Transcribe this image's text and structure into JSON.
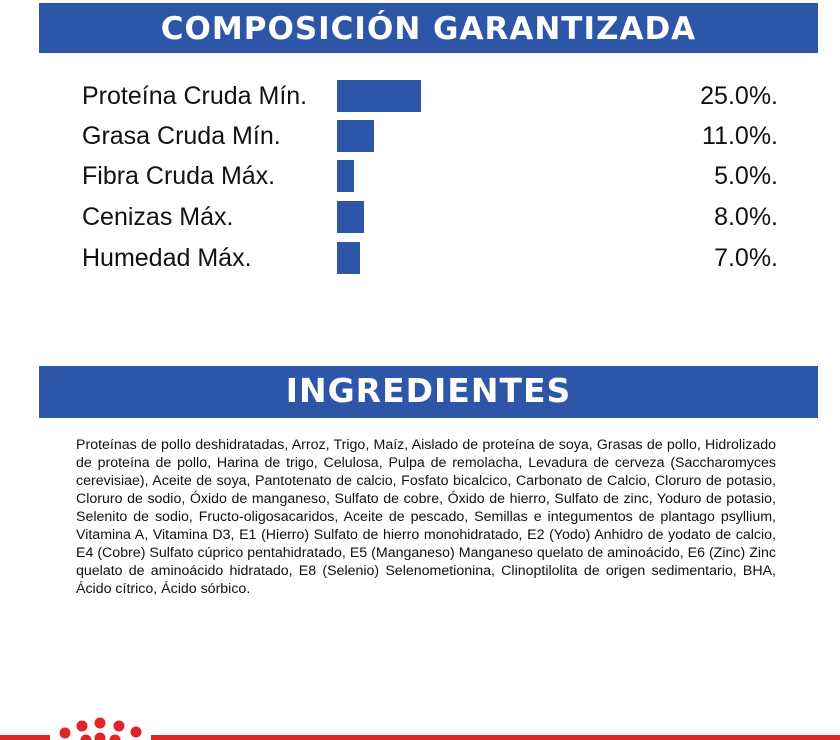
{
  "composition": {
    "title": "COMPOSICIÓN GARANTIZADA",
    "bar_color": "#2d56a8",
    "rows": [
      {
        "label": "Proteína Cruda Mín.",
        "value": "25.0%.",
        "percent": 25.0
      },
      {
        "label": "Grasa Cruda Mín.",
        "value": "11.0%.",
        "percent": 11.0
      },
      {
        "label": "Fibra Cruda Máx.",
        "value": "5.0%.",
        "percent": 5.0
      },
      {
        "label": "Cenizas Máx.",
        "value": "8.0%.",
        "percent": 8.0
      },
      {
        "label": "Humedad Máx.",
        "value": "7.0%.",
        "percent": 7.0
      }
    ]
  },
  "ingredients": {
    "title": "INGREDIENTES",
    "text": "Proteínas de pollo deshidratadas, Arroz, Trigo, Maíz, Aislado de proteína de soya, Grasas de pollo, Hidrolizado de proteína de pollo, Harina de trigo, Celulosa, Pulpa de remolacha, Levadura de cerveza (Saccharomyces cerevisiae), Aceite de soya, Pantotenato de calcio, Fosfato bicalcico, Carbonato de Calcio, Cloruro de potasio, Cloruro de sodio, Óxido de manganeso, Sulfato de cobre, Óxido de hierro, Sulfato de zinc, Yoduro de potasio, Selenito de sodio, Fructo-oligosacaridos, Aceite de pescado, Semillas e integumentos de plantago psyllium, Vitamina A, Vitamina D3, E1 (Hierro) Sulfato de hierro monohidratado, E2 (Yodo) Anhidro de yodato de calcio, E4 (Cobre) Sulfato cúprico pentahidratado, E5 (Manganeso) Manganeso quelato de aminoácido, E6 (Zinc) Zinc quelato de aminoácido hidratado, E8 (Selenio) Selenometionina, Clinoptilolita de origen sedimentario, BHA, Ácido cítrico, Ácido sórbico."
  },
  "footer": {
    "logo_icon": "royal-canin-crown-dots-icon",
    "accent": "#e1232a"
  }
}
